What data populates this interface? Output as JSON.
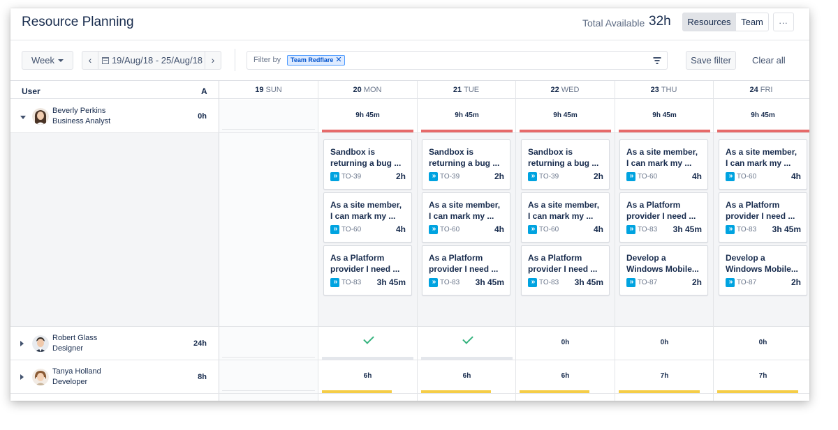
{
  "header": {
    "title": "Resource Planning",
    "total_label": "Total Available",
    "total_value": "32h",
    "views": [
      "Resources",
      "Team"
    ],
    "more_label": "..."
  },
  "toolbar": {
    "week_label": "Week",
    "prev_label": "‹",
    "next_label": "›",
    "date_range": "19/Aug/18 - 25/Aug/18",
    "filter_by_label": "Filter by",
    "filter_chip": "Team Redflare",
    "chip_remove": "✕",
    "save_filter_label": "Save filter",
    "clear_all_label": "Clear all"
  },
  "grid": {
    "user_col": "User",
    "avail_col": "A",
    "days": [
      {
        "num": "19",
        "name": "SUN"
      },
      {
        "num": "20",
        "name": "MON"
      },
      {
        "num": "21",
        "name": "TUE"
      },
      {
        "num": "22",
        "name": "WED"
      },
      {
        "num": "23",
        "name": "THU"
      },
      {
        "num": "24",
        "name": "FRI"
      }
    ]
  },
  "users": [
    {
      "name": "Beverly Perkins",
      "role": "Business Analyst",
      "hours": "0h",
      "day_hours": [
        "9h 45m",
        "9h 45m",
        "9h 45m",
        "9h 45m",
        "9h 45m"
      ],
      "cards": [
        [
          {
            "l1": "Sandbox is",
            "l2": "returning a bug ...",
            "key": "TO-39",
            "est": "2h"
          },
          {
            "l1": "As a site member,",
            "l2": "I can mark my ...",
            "key": "TO-60",
            "est": "4h"
          },
          {
            "l1": "As a Platform",
            "l2": "provider I need ...",
            "key": "TO-83",
            "est": "3h 45m"
          }
        ],
        [
          {
            "l1": "Sandbox is",
            "l2": "returning a bug ...",
            "key": "TO-39",
            "est": "2h"
          },
          {
            "l1": "As a site member,",
            "l2": "I can mark my ...",
            "key": "TO-60",
            "est": "4h"
          },
          {
            "l1": "As a Platform",
            "l2": "provider I need ...",
            "key": "TO-83",
            "est": "3h 45m"
          }
        ],
        [
          {
            "l1": "Sandbox is",
            "l2": "returning a bug ...",
            "key": "TO-39",
            "est": "2h"
          },
          {
            "l1": "As a site member,",
            "l2": "I can mark my ...",
            "key": "TO-60",
            "est": "4h"
          },
          {
            "l1": "As a Platform",
            "l2": "provider I need ...",
            "key": "TO-83",
            "est": "3h 45m"
          }
        ],
        [
          {
            "l1": "As a site member,",
            "l2": "I can mark my ...",
            "key": "TO-60",
            "est": "4h"
          },
          {
            "l1": "As a Platform",
            "l2": "provider I need ...",
            "key": "TO-83",
            "est": "3h 45m"
          },
          {
            "l1": "Develop a",
            "l2": "Windows Mobile...",
            "key": "TO-87",
            "est": "2h"
          }
        ],
        [
          {
            "l1": "As a site member,",
            "l2": "I can mark my ...",
            "key": "TO-60",
            "est": "4h"
          },
          {
            "l1": "As a Platform",
            "l2": "provider I need ...",
            "key": "TO-83",
            "est": "3h 45m"
          },
          {
            "l1": "Develop a",
            "l2": "Windows Mobile...",
            "key": "TO-87",
            "est": "2h"
          }
        ]
      ]
    },
    {
      "name": "Robert Glass",
      "role": "Designer",
      "hours": "24h",
      "day_hours": [
        "",
        "",
        "0h",
        "0h",
        "0h"
      ]
    },
    {
      "name": "Tanya Holland",
      "role": "Developer",
      "hours": "8h",
      "day_hours": [
        "6h",
        "6h",
        "6h",
        "7h",
        "7h"
      ]
    }
  ],
  "icons": {
    "story": "story-icon",
    "check": "check-icon",
    "calendar": "calendar-icon",
    "filter": "filter-icon"
  },
  "colors": {
    "over_allocated": "#e66a6a",
    "partial": "#f5cd47",
    "story_icon": "#00a3e0",
    "check": "#36b37e"
  }
}
